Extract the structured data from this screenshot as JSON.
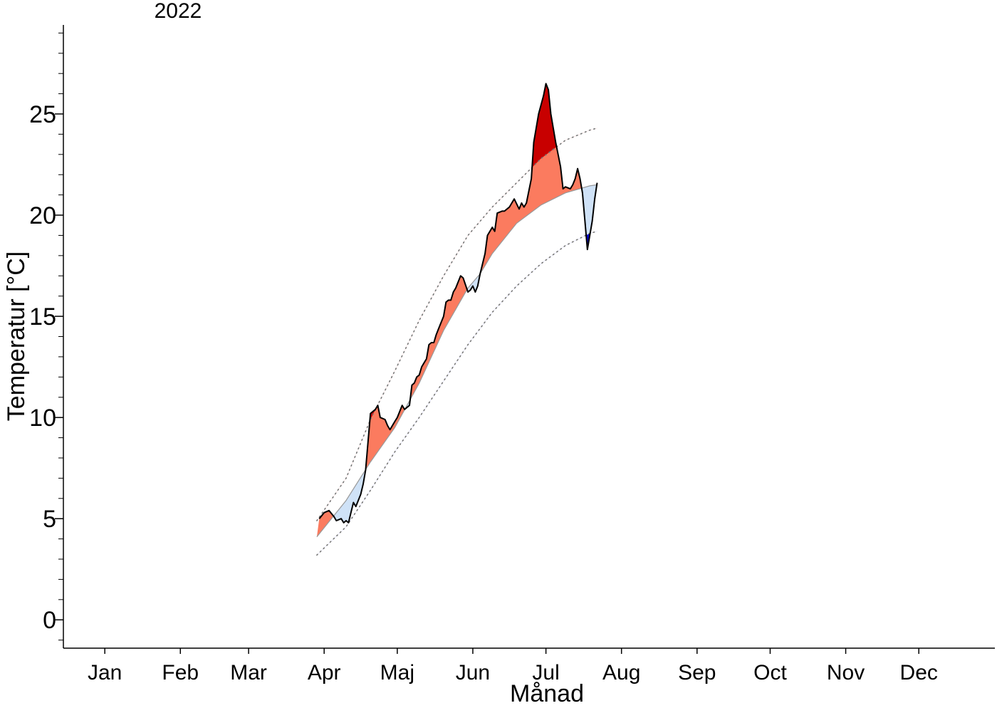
{
  "chart_data": {
    "type": "line",
    "title": "2022",
    "x_label": "Månad",
    "y_label": "Temperatur [°C]",
    "xlim": [
      -16,
      366.2
    ],
    "ylim": [
      -1.4,
      29.4
    ],
    "xticks": [
      {
        "value": 1,
        "label": "Jan"
      },
      {
        "value": 32,
        "label": "Feb"
      },
      {
        "value": 60,
        "label": "Mar"
      },
      {
        "value": 91,
        "label": "Apr"
      },
      {
        "value": 121,
        "label": "Maj"
      },
      {
        "value": 152,
        "label": "Jun"
      },
      {
        "value": 182,
        "label": "Jul"
      },
      {
        "value": 213,
        "label": "Aug"
      },
      {
        "value": 244,
        "label": "Sep"
      },
      {
        "value": 274,
        "label": "Oct"
      },
      {
        "value": 305,
        "label": "Nov"
      },
      {
        "value": 335,
        "label": "Dec"
      }
    ],
    "yticks": [
      0,
      5,
      10,
      15,
      20,
      25
    ],
    "yticks_minor": [
      -1,
      0,
      1,
      2,
      3,
      4,
      5,
      6,
      7,
      8,
      9,
      10,
      11,
      12,
      13,
      14,
      15,
      16,
      17,
      18,
      19,
      20,
      21,
      22,
      23,
      24,
      25,
      26,
      27,
      28,
      29
    ],
    "observed": {
      "color": "#000000",
      "x": [
        89,
        91,
        93,
        95,
        96,
        98,
        99,
        100,
        101,
        102,
        103,
        104,
        106,
        107,
        108,
        109,
        110,
        112,
        113,
        114,
        116,
        117,
        118,
        120,
        121,
        122,
        123,
        124,
        126,
        127,
        128,
        129,
        130,
        131,
        133,
        134,
        135,
        136,
        137,
        138,
        140,
        141,
        142,
        143,
        144,
        145,
        147,
        148,
        150,
        151,
        152,
        153,
        154,
        155,
        157,
        158,
        160,
        161,
        162,
        164,
        165,
        167,
        169,
        171,
        172,
        173,
        174,
        176,
        177,
        179,
        181,
        182,
        183,
        184,
        186,
        188,
        189,
        190,
        192,
        193,
        194,
        195,
        196,
        197,
        198,
        199,
        200,
        201,
        202,
        203
      ],
      "values": [
        5.0,
        5.3,
        5.4,
        5.1,
        4.9,
        5.0,
        4.8,
        4.9,
        4.8,
        5.3,
        5.8,
        5.6,
        6.2,
        6.7,
        7.4,
        8.8,
        10.2,
        10.4,
        10.6,
        10.0,
        9.9,
        9.6,
        9.4,
        9.8,
        10.0,
        10.3,
        10.6,
        10.4,
        10.6,
        11.6,
        11.7,
        12.0,
        12.1,
        12.5,
        12.9,
        13.6,
        13.7,
        13.7,
        14.1,
        14.4,
        15.0,
        15.7,
        15.8,
        15.8,
        16.2,
        16.4,
        17.0,
        16.9,
        16.2,
        16.3,
        16.5,
        16.2,
        16.5,
        17.1,
        18.1,
        19.0,
        19.4,
        19.2,
        20.1,
        20.2,
        20.2,
        20.4,
        20.8,
        20.3,
        20.6,
        20.4,
        20.6,
        21.8,
        23.6,
        25.0,
        25.9,
        26.5,
        26.2,
        25.0,
        23.6,
        22.4,
        21.3,
        21.4,
        21.3,
        21.5,
        21.8,
        22.3,
        21.8,
        21.1,
        19.7,
        18.3,
        19.0,
        19.7,
        20.8,
        21.6
      ]
    },
    "normal": {
      "color": "#999999",
      "x": [
        88,
        100,
        110,
        120,
        130,
        140,
        150,
        155,
        160,
        170,
        180,
        190,
        200,
        203
      ],
      "values": [
        4.1,
        5.9,
        7.8,
        9.5,
        11.7,
        14.3,
        16.4,
        17.1,
        18.1,
        19.6,
        20.5,
        21.1,
        21.45,
        21.5
      ]
    },
    "upper": {
      "color": "#777777",
      "x": [
        88,
        100,
        110,
        120,
        130,
        140,
        150,
        160,
        170,
        180,
        190,
        200,
        203
      ],
      "values": [
        4.9,
        7.0,
        9.9,
        12.3,
        14.8,
        17.0,
        19.0,
        20.4,
        21.6,
        22.8,
        23.7,
        24.2,
        24.3
      ]
    },
    "lower": {
      "color": "#777777",
      "x": [
        88,
        100,
        110,
        120,
        130,
        140,
        150,
        160,
        170,
        180,
        190,
        200,
        203
      ],
      "values": [
        3.2,
        4.6,
        6.4,
        8.3,
        10.0,
        11.8,
        13.6,
        15.2,
        16.5,
        17.6,
        18.5,
        19.1,
        19.2
      ]
    },
    "fill_colors": {
      "above": "#fb7b5f",
      "below": "#cfe2f7",
      "far_above": "#c80000",
      "far_below": "#0000c8"
    }
  }
}
